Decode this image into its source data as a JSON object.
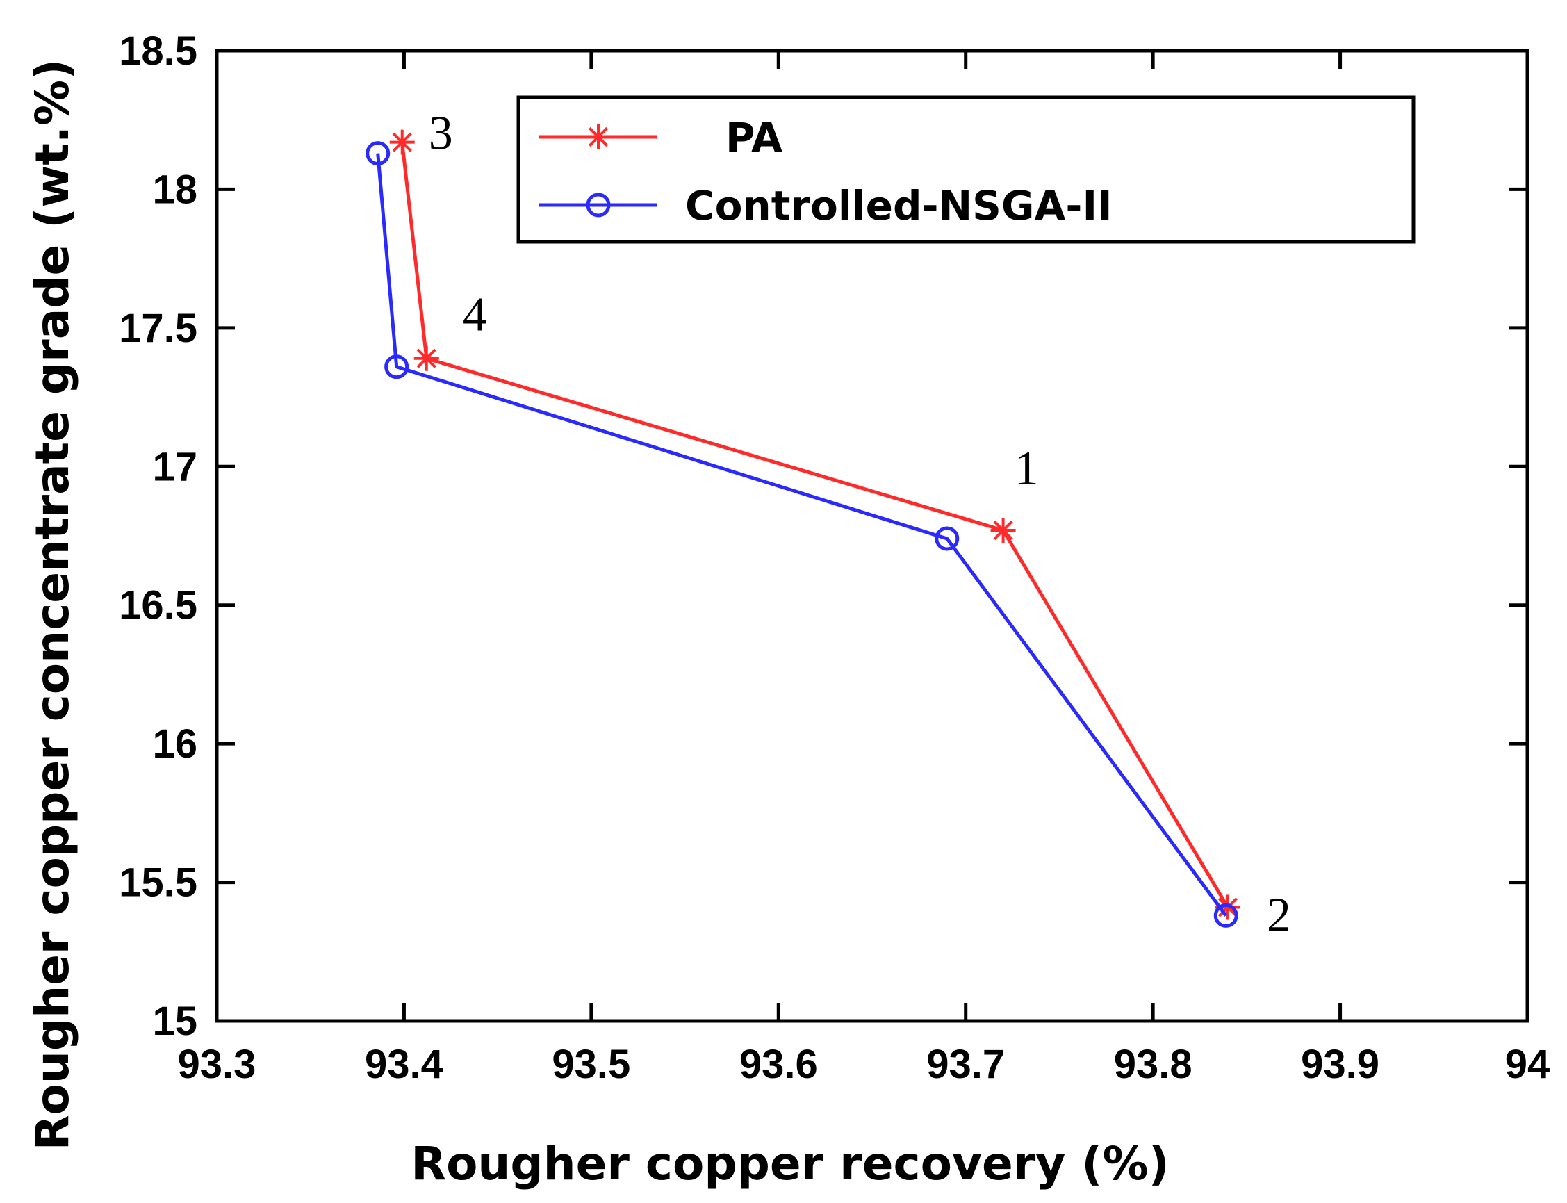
{
  "chart_data": {
    "type": "line",
    "title": "",
    "xlabel": "Rougher copper recovery (%)",
    "ylabel": "Rougher copper concentrate grade (wt.%)",
    "xlim": [
      93.3,
      94.0
    ],
    "ylim": [
      15.0,
      18.5
    ],
    "xticks": [
      "93.3",
      "93.4",
      "93.5",
      "93.6",
      "93.7",
      "93.8",
      "93.9",
      "94"
    ],
    "yticks": [
      "15",
      "15.5",
      "16",
      "16.5",
      "17",
      "17.5",
      "18",
      "18.5"
    ],
    "legend_position": "top-right",
    "series": [
      {
        "name": "PA",
        "color": "#ff2a2a",
        "marker": "star",
        "points": [
          [
            93.399,
            18.17
          ],
          [
            93.412,
            17.39
          ],
          [
            93.72,
            16.77
          ],
          [
            93.84,
            15.41
          ]
        ]
      },
      {
        "name": "Controlled-NSGA-II",
        "color": "#2a2aff",
        "marker": "circle",
        "points": [
          [
            93.386,
            18.13
          ],
          [
            93.396,
            17.36
          ],
          [
            93.69,
            16.74
          ],
          [
            93.839,
            15.38
          ]
        ]
      }
    ],
    "annotations": [
      {
        "text": "3",
        "x": 93.399,
        "y": 18.17
      },
      {
        "text": "4",
        "x": 93.412,
        "y": 17.39
      },
      {
        "text": "1",
        "x": 93.72,
        "y": 16.77
      },
      {
        "text": "2",
        "x": 93.84,
        "y": 15.41
      }
    ]
  }
}
